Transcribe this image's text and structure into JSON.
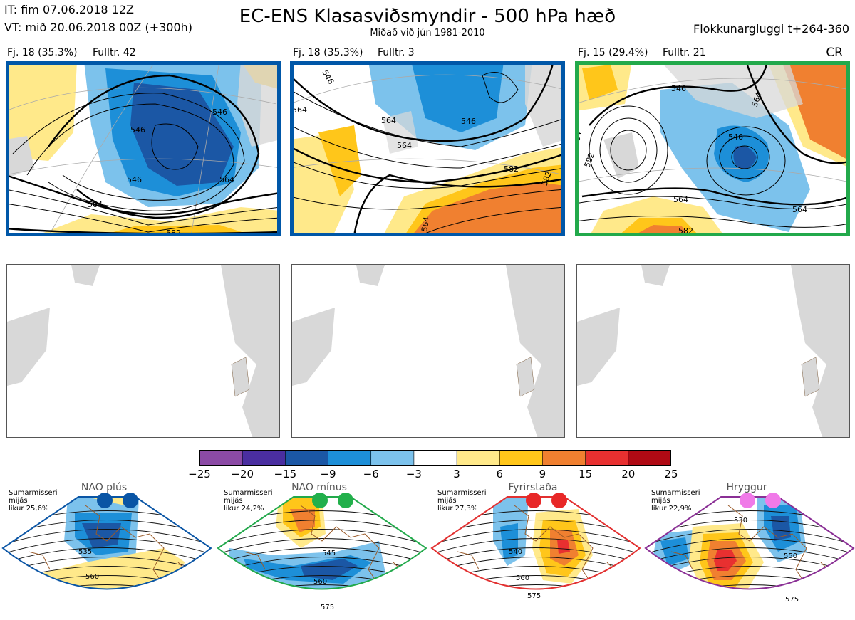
{
  "header": {
    "it": "IT: fim 07.06.2018 12Z",
    "vt": "VT: mið 20.06.2018 00Z  (+300h)",
    "title": "EC-ENS Klasasviðsmyndir - 500 hPa hæð",
    "subtitle": "Miðað við jún 1981-2010",
    "window": "Flokkunargluggi t+264-360",
    "corner": "CR"
  },
  "panels": [
    {
      "label": "Fj. 18 (35.3%)",
      "count": "Fulltr. 42",
      "frame_color": "#0057a8",
      "contour_labels": [
        "546",
        "546",
        "564",
        "564",
        "582",
        "546"
      ]
    },
    {
      "label": "Fj. 18 (35.3%)",
      "count": "Fulltr. 3",
      "frame_color": "#0057a8",
      "contour_labels": [
        "546",
        "564",
        "564",
        "582",
        "564",
        "546",
        "582",
        "564"
      ]
    },
    {
      "label": "Fj. 15 (29.4%)",
      "count": "Fulltr. 21",
      "frame_color": "#22a94b",
      "contour_labels": [
        "546",
        "564",
        "546",
        "564",
        "582",
        "564",
        "582",
        "564"
      ]
    }
  ],
  "colorbar": {
    "ticks": [
      "−25",
      "−20",
      "−15",
      "−9",
      "−6",
      "−3",
      "3",
      "6",
      "9",
      "15",
      "20",
      "25"
    ],
    "colors": [
      "#8b4aa5",
      "#4a2ea0",
      "#1b57a5",
      "#1d8fd8",
      "#7cc2ec",
      "#ffffff",
      "#ffe98a",
      "#ffc61a",
      "#f08030",
      "#e83030",
      "#b00a14"
    ]
  },
  "regimes": [
    {
      "name": "NAO plús",
      "note": "Sumarmisseri\nmijás\nlíkur 25,6%",
      "color": "#0a55a5",
      "dot_color": "#0a55a5",
      "labels": [
        "535",
        "560"
      ]
    },
    {
      "name": "NAO mínus",
      "note": "Sumarmisseri\nmijás\nlíkur 24,2%",
      "color": "#22a94b",
      "dot_color": "#22b04b",
      "labels": [
        "545",
        "560",
        "575"
      ]
    },
    {
      "name": "Fyrirstaða",
      "note": "Sumarmisseri\nmijás\nlíkur 27,3%",
      "color": "#e23030",
      "dot_color": "#e82828",
      "labels": [
        "540",
        "560",
        "575"
      ]
    },
    {
      "name": "Hryggur",
      "note": "Sumarmisseri\nmijás\nlíkur 22,9%",
      "color": "#8a2f95",
      "dot_color": "#f07ae8",
      "labels": [
        "530",
        "550",
        "575"
      ]
    }
  ]
}
